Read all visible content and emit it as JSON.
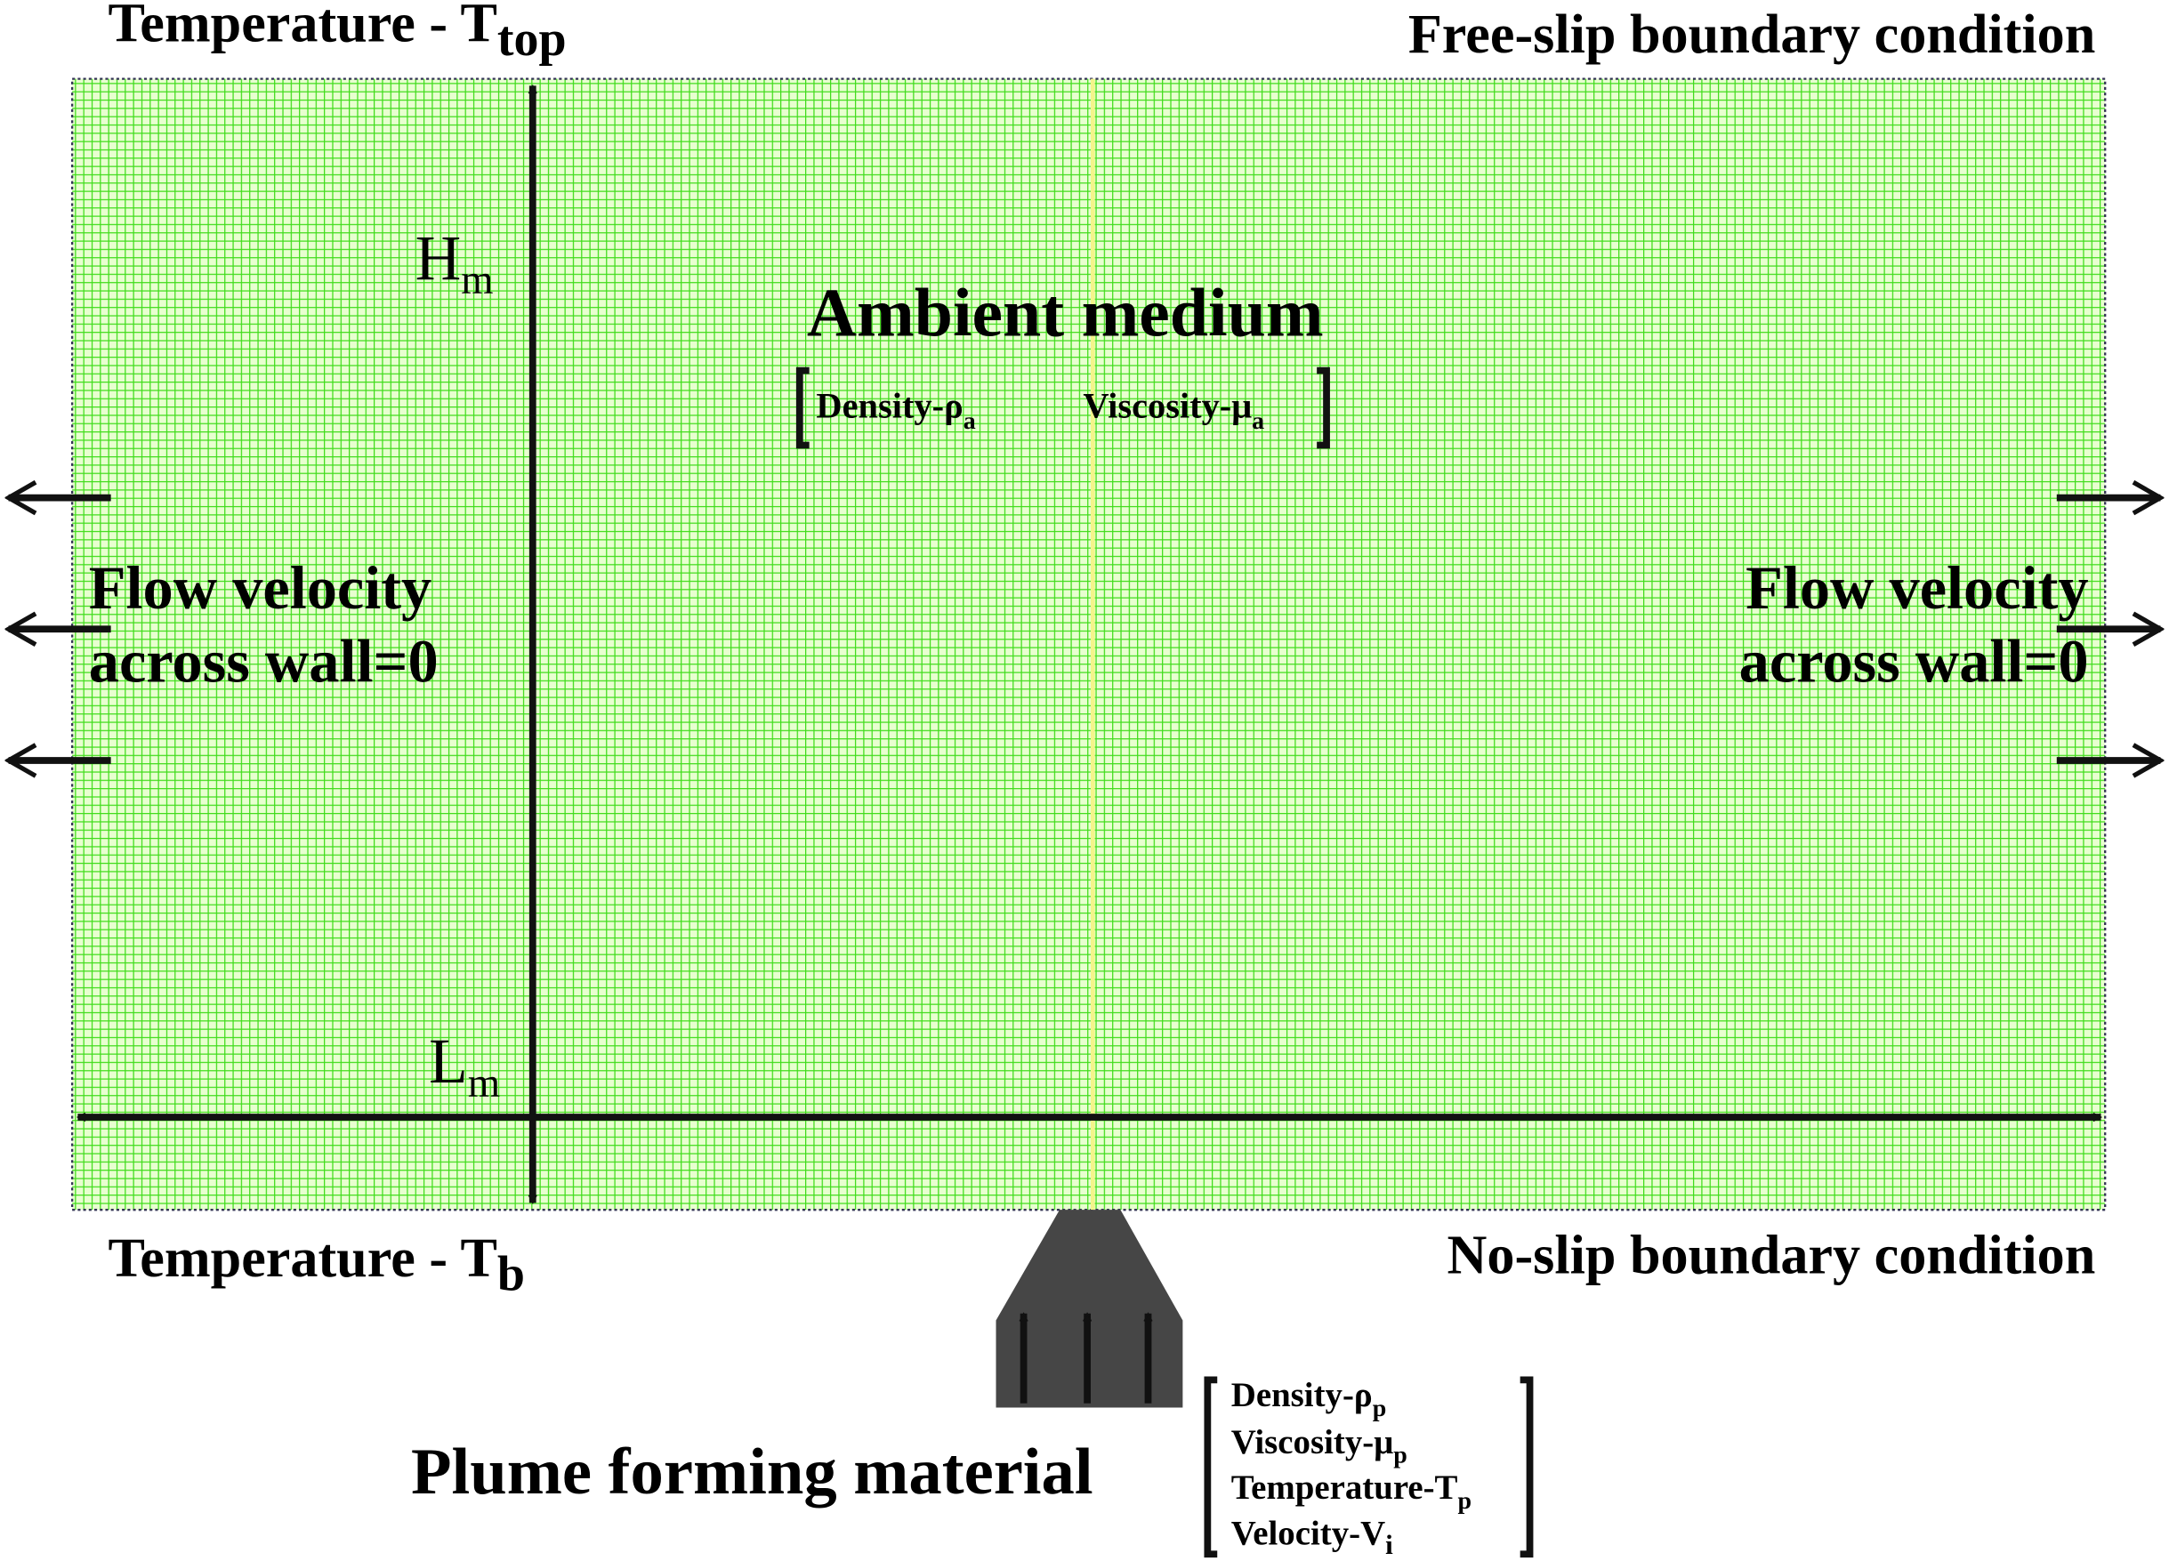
{
  "header": {
    "top_temperature": {
      "text": "Temperature - T",
      "sub": "top"
    },
    "top_boundary": "Free-slip boundary condition",
    "bottom_temperature": {
      "text": "Temperature - T",
      "sub": "b"
    },
    "bottom_boundary": "No-slip boundary condition"
  },
  "domain": {
    "height": {
      "text": "H",
      "sub": "m"
    },
    "length": {
      "text": "L",
      "sub": "m"
    },
    "title": "Ambient medium",
    "properties": [
      {
        "text": "Density-ρ",
        "sub": "a"
      },
      {
        "text": "Viscosity-μ",
        "sub": "a"
      }
    ]
  },
  "walls": {
    "left": [
      "Flow velocity",
      "across wall=0"
    ],
    "right": [
      "Flow velocity",
      "across wall=0"
    ]
  },
  "inlet": {
    "title": "Plume forming material",
    "properties": [
      {
        "text": "Density-ρ",
        "sub": "p"
      },
      {
        "text": "Viscosity-μ",
        "sub": "p"
      },
      {
        "text": "Temperature-T",
        "sub": "p"
      },
      {
        "text": "Velocity-V",
        "sub": "i"
      }
    ]
  }
}
